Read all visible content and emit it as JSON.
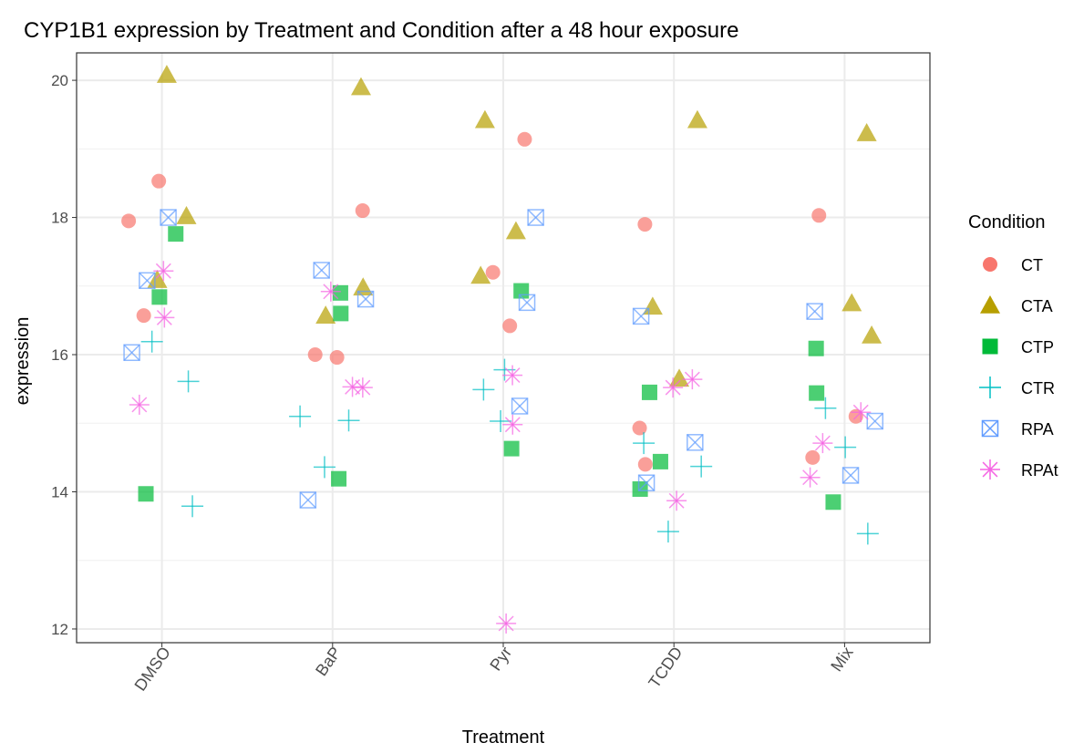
{
  "chart_data": {
    "type": "scatter",
    "title": "CYP1B1 expression by Treatment and Condition after a 48 hour exposure",
    "xlabel": "Treatment",
    "ylabel": "expression",
    "categories": [
      "DMSO",
      "BaP",
      "Pyr",
      "TCDD",
      "Mix"
    ],
    "y_ticks": [
      12,
      14,
      16,
      18,
      20
    ],
    "ylim": [
      11.8,
      20.4
    ],
    "grid": true,
    "legend_position": "right",
    "legend_title": "Condition",
    "series": [
      {
        "name": "CT",
        "shape": "circle",
        "color": "#F8766D",
        "points": [
          {
            "x": "DMSO",
            "y": 18.53
          },
          {
            "x": "DMSO",
            "y": 17.95
          },
          {
            "x": "DMSO",
            "y": 16.57
          },
          {
            "x": "BaP",
            "y": 18.1
          },
          {
            "x": "BaP",
            "y": 15.96
          },
          {
            "x": "BaP",
            "y": 16.0
          },
          {
            "x": "Pyr",
            "y": 19.14
          },
          {
            "x": "Pyr",
            "y": 17.2
          },
          {
            "x": "Pyr",
            "y": 16.42
          },
          {
            "x": "TCDD",
            "y": 17.9
          },
          {
            "x": "TCDD",
            "y": 14.93
          },
          {
            "x": "TCDD",
            "y": 14.4
          },
          {
            "x": "Mix",
            "y": 18.03
          },
          {
            "x": "Mix",
            "y": 15.1
          },
          {
            "x": "Mix",
            "y": 14.5
          }
        ]
      },
      {
        "name": "CTA",
        "shape": "triangle",
        "color": "#B79F00",
        "points": [
          {
            "x": "DMSO",
            "y": 20.08
          },
          {
            "x": "DMSO",
            "y": 18.02
          },
          {
            "x": "DMSO",
            "y": 17.09
          },
          {
            "x": "BaP",
            "y": 19.9
          },
          {
            "x": "BaP",
            "y": 16.98
          },
          {
            "x": "BaP",
            "y": 16.57
          },
          {
            "x": "Pyr",
            "y": 19.42
          },
          {
            "x": "Pyr",
            "y": 17.8
          },
          {
            "x": "Pyr",
            "y": 17.15
          },
          {
            "x": "TCDD",
            "y": 19.42
          },
          {
            "x": "TCDD",
            "y": 16.7
          },
          {
            "x": "TCDD",
            "y": 15.65
          },
          {
            "x": "Mix",
            "y": 19.23
          },
          {
            "x": "Mix",
            "y": 16.75
          },
          {
            "x": "Mix",
            "y": 16.28
          }
        ]
      },
      {
        "name": "CTP",
        "shape": "square",
        "color": "#00BA38",
        "points": [
          {
            "x": "DMSO",
            "y": 17.76
          },
          {
            "x": "DMSO",
            "y": 16.84
          },
          {
            "x": "DMSO",
            "y": 13.97
          },
          {
            "x": "BaP",
            "y": 16.9
          },
          {
            "x": "BaP",
            "y": 16.6
          },
          {
            "x": "BaP",
            "y": 14.19
          },
          {
            "x": "Pyr",
            "y": 16.93
          },
          {
            "x": "Pyr",
            "y": 14.63
          },
          {
            "x": "TCDD",
            "y": 15.45
          },
          {
            "x": "TCDD",
            "y": 14.44
          },
          {
            "x": "TCDD",
            "y": 14.04
          },
          {
            "x": "Mix",
            "y": 16.09
          },
          {
            "x": "Mix",
            "y": 15.44
          },
          {
            "x": "Mix",
            "y": 13.85
          }
        ]
      },
      {
        "name": "CTR",
        "shape": "plus",
        "color": "#00BFC4",
        "points": [
          {
            "x": "DMSO",
            "y": 16.19
          },
          {
            "x": "DMSO",
            "y": 15.61
          },
          {
            "x": "DMSO",
            "y": 13.79
          },
          {
            "x": "BaP",
            "y": 15.1
          },
          {
            "x": "BaP",
            "y": 15.04
          },
          {
            "x": "BaP",
            "y": 14.36
          },
          {
            "x": "Pyr",
            "y": 15.78
          },
          {
            "x": "Pyr",
            "y": 15.49
          },
          {
            "x": "Pyr",
            "y": 15.03
          },
          {
            "x": "TCDD",
            "y": 14.71
          },
          {
            "x": "TCDD",
            "y": 14.37
          },
          {
            "x": "TCDD",
            "y": 13.42
          },
          {
            "x": "Mix",
            "y": 15.22
          },
          {
            "x": "Mix",
            "y": 14.65
          },
          {
            "x": "Mix",
            "y": 13.39
          }
        ]
      },
      {
        "name": "RPA",
        "shape": "boxx",
        "color": "#619CFF",
        "points": [
          {
            "x": "DMSO",
            "y": 18.0
          },
          {
            "x": "DMSO",
            "y": 17.08
          },
          {
            "x": "DMSO",
            "y": 16.03
          },
          {
            "x": "BaP",
            "y": 17.23
          },
          {
            "x": "BaP",
            "y": 16.81
          },
          {
            "x": "BaP",
            "y": 13.88
          },
          {
            "x": "Pyr",
            "y": 18.0
          },
          {
            "x": "Pyr",
            "y": 16.76
          },
          {
            "x": "Pyr",
            "y": 15.25
          },
          {
            "x": "TCDD",
            "y": 16.56
          },
          {
            "x": "TCDD",
            "y": 14.72
          },
          {
            "x": "TCDD",
            "y": 14.13
          },
          {
            "x": "Mix",
            "y": 16.63
          },
          {
            "x": "Mix",
            "y": 15.03
          },
          {
            "x": "Mix",
            "y": 14.24
          }
        ]
      },
      {
        "name": "RPAt",
        "shape": "asterisk",
        "color": "#F564E3",
        "points": [
          {
            "x": "DMSO",
            "y": 17.22
          },
          {
            "x": "DMSO",
            "y": 16.54
          },
          {
            "x": "DMSO",
            "y": 15.27
          },
          {
            "x": "BaP",
            "y": 16.92
          },
          {
            "x": "BaP",
            "y": 15.53
          },
          {
            "x": "BaP",
            "y": 15.52
          },
          {
            "x": "Pyr",
            "y": 15.7
          },
          {
            "x": "Pyr",
            "y": 14.98
          },
          {
            "x": "Pyr",
            "y": 12.08
          },
          {
            "x": "TCDD",
            "y": 15.64
          },
          {
            "x": "TCDD",
            "y": 15.52
          },
          {
            "x": "TCDD",
            "y": 13.87
          },
          {
            "x": "Mix",
            "y": 15.16
          },
          {
            "x": "Mix",
            "y": 14.71
          },
          {
            "x": "Mix",
            "y": 14.21
          }
        ]
      }
    ]
  }
}
